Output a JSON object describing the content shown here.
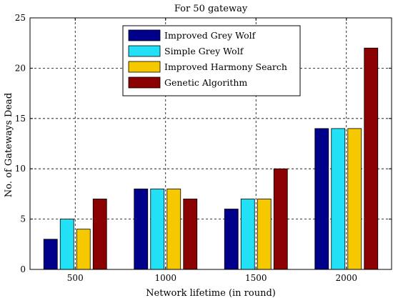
{
  "chart_data": {
    "type": "bar",
    "title": "For 50 gateway",
    "xlabel": "Network lifetime (in round)",
    "ylabel": "No. of Gateways Dead",
    "categories": [
      "500",
      "1000",
      "1500",
      "2000"
    ],
    "ylim": [
      0,
      25
    ],
    "yticks": [
      0,
      5,
      10,
      15,
      20,
      25
    ],
    "grid": true,
    "legend_position": "top-center",
    "series": [
      {
        "name": "Improved Grey Wolf",
        "color": "#00008b",
        "values": [
          3,
          8,
          6,
          14
        ]
      },
      {
        "name": "Simple Grey Wolf",
        "color": "#22e0f5",
        "values": [
          5,
          8,
          7,
          14
        ]
      },
      {
        "name": "Improved Harmony Search",
        "color": "#f5c800",
        "values": [
          4,
          8,
          7,
          14
        ]
      },
      {
        "name": "Genetic Algorithm",
        "color": "#8b0000",
        "values": [
          7,
          7,
          10,
          22
        ]
      }
    ]
  }
}
